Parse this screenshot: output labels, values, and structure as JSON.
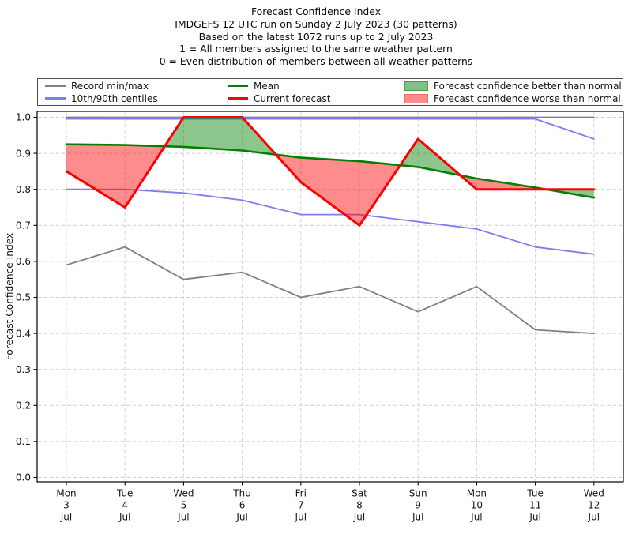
{
  "titles": [
    "Forecast Confidence Index",
    "IMDGEFS 12 UTC run on Sunday 2 July 2023 (30 patterns)",
    "Based on the latest 1072 runs up to 2 July 2023",
    "1 = All members assigned to the same weather pattern",
    "0 = Even distribution of members between all weather patterns"
  ],
  "legend": {
    "items": [
      {
        "label": "Record min/max",
        "type": "line",
        "color": "#808080"
      },
      {
        "label": "10th/90th centiles",
        "type": "line",
        "color": "#7d7df2"
      },
      {
        "label": "Mean",
        "type": "line",
        "color": "#008000"
      },
      {
        "label": "Current forecast",
        "type": "line",
        "color": "#ff0000"
      },
      {
        "label": "Forecast confidence better than normal",
        "type": "patch",
        "face": "#8abc8a",
        "edge": "#4a9a4a"
      },
      {
        "label": "Forecast confidence worse than normal",
        "type": "patch",
        "face": "#ff8c8c",
        "edge": "#f26c6c"
      }
    ]
  },
  "chart_data": {
    "type": "line",
    "title": "Forecast Confidence Index",
    "xlabel": "",
    "ylabel": "Forecast Confidence Index",
    "ylim": [
      0.0,
      1.0
    ],
    "yticks": [
      0.0,
      0.1,
      0.2,
      0.3,
      0.4,
      0.5,
      0.6,
      0.7,
      0.8,
      0.9,
      1.0
    ],
    "grid": true,
    "legend_position": "top",
    "categories": [
      {
        "dow": "Mon",
        "day": "3",
        "month": "Jul"
      },
      {
        "dow": "Tue",
        "day": "4",
        "month": "Jul"
      },
      {
        "dow": "Wed",
        "day": "5",
        "month": "Jul"
      },
      {
        "dow": "Thu",
        "day": "6",
        "month": "Jul"
      },
      {
        "dow": "Fri",
        "day": "7",
        "month": "Jul"
      },
      {
        "dow": "Sat",
        "day": "8",
        "month": "Jul"
      },
      {
        "dow": "Sun",
        "day": "9",
        "month": "Jul"
      },
      {
        "dow": "Mon",
        "day": "10",
        "month": "Jul"
      },
      {
        "dow": "Tue",
        "day": "11",
        "month": "Jul"
      },
      {
        "dow": "Wed",
        "day": "12",
        "month": "Jul"
      }
    ],
    "series": [
      {
        "name": "Record max",
        "legend": "Record min/max",
        "color": "#808080",
        "width": 1.8,
        "values": [
          1.0,
          1.0,
          1.0,
          1.0,
          1.0,
          1.0,
          1.0,
          1.0,
          1.0,
          1.0
        ]
      },
      {
        "name": "Record min",
        "legend": "Record min/max",
        "color": "#808080",
        "width": 1.8,
        "values": [
          0.59,
          0.64,
          0.55,
          0.57,
          0.5,
          0.53,
          0.46,
          0.53,
          0.41,
          0.4
        ]
      },
      {
        "name": "90th centile",
        "legend": "10th/90th centiles",
        "color": "#7d7df2",
        "width": 1.8,
        "values": [
          1.0,
          1.0,
          1.0,
          1.0,
          1.0,
          1.0,
          1.0,
          1.0,
          1.0,
          0.94
        ]
      },
      {
        "name": "10th centile",
        "legend": "10th/90th centiles",
        "color": "#7d7df2",
        "width": 1.8,
        "values": [
          0.8,
          0.8,
          0.79,
          0.77,
          0.73,
          0.73,
          0.71,
          0.69,
          0.64,
          0.62
        ]
      },
      {
        "name": "Mean",
        "legend": "Mean",
        "color": "#008000",
        "width": 2.6,
        "values": [
          0.925,
          0.923,
          0.918,
          0.908,
          0.888,
          0.878,
          0.862,
          0.83,
          0.805,
          0.777
        ]
      },
      {
        "name": "Current forecast",
        "legend": "Current forecast",
        "color": "#ff0000",
        "width": 3.0,
        "values": [
          0.85,
          0.75,
          1.0,
          1.0,
          0.82,
          0.7,
          0.94,
          0.8,
          0.8,
          0.8
        ]
      }
    ],
    "fills": {
      "between": [
        "Current forecast",
        "Mean"
      ],
      "better_label": "Forecast confidence better than normal",
      "better_color": "#008000",
      "worse_label": "Forecast confidence worse than normal",
      "worse_color": "#ff0000"
    }
  }
}
